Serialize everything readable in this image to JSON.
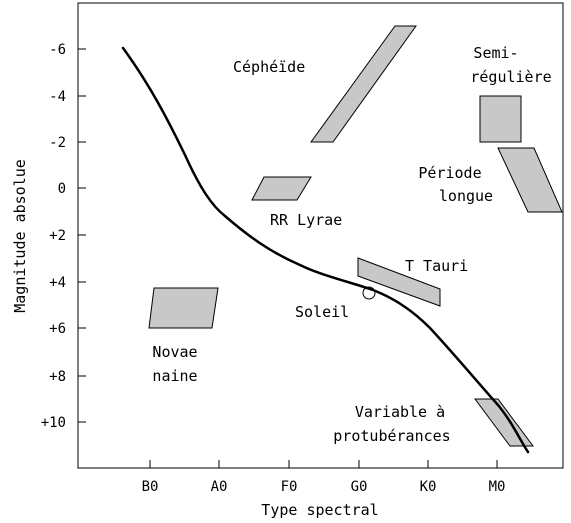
{
  "diagram": {
    "axes": {
      "x_title": "Type spectral",
      "y_title": "Magnitude absolue",
      "x_ticks": [
        "B0",
        "A0",
        "F0",
        "G0",
        "K0",
        "M0"
      ],
      "y_ticks": [
        "-6",
        "-4",
        "-2",
        "0",
        "+2",
        "+4",
        "+6",
        "+8",
        "+10"
      ]
    },
    "regions": {
      "cepheide": "Céphéïde",
      "semireg_1": "Semi-",
      "semireg_2": "régulière",
      "periode_1": "Période",
      "periode_2": "longue",
      "rrlyrae": "RR Lyrae",
      "ttauri": "T Tauri",
      "soleil": "Soleil",
      "novae_1": "Novae",
      "novae_2": "naine",
      "variable_1": "Variable à",
      "variable_2": "protubérances"
    },
    "colors": {
      "region_fill": "#c8c8c8",
      "curve": "#000000"
    }
  }
}
